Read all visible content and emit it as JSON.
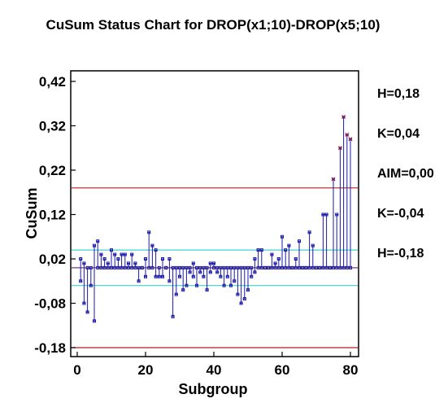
{
  "chart_data": {
    "type": "scatter",
    "title": "CuSum Status Chart for DROP(x1;10)-DROP(x5;10)",
    "xlabel": "Subgroup",
    "ylabel": "CuSum",
    "xlim": [
      -1,
      81.5
    ],
    "ylim": [
      -0.19,
      0.43
    ],
    "x_ticks": [
      0,
      20,
      40,
      60,
      80
    ],
    "x_tick_labels": [
      "0",
      "20",
      "40",
      "60",
      "80"
    ],
    "y_ticks": [
      0.42,
      0.32,
      0.22,
      0.12,
      0.02,
      -0.08,
      -0.18
    ],
    "y_tick_labels": [
      "0,42",
      "0,32",
      "0,22",
      "0,12",
      "0,02",
      "-0,08",
      "-0,18"
    ],
    "grid": false,
    "colors": {
      "points": "#1a1aa8",
      "signal_points": "#8b1a4a",
      "stems": "#1a1aa8",
      "decision_lines": "#b22222",
      "k_lines": "#40d0d0",
      "aim_line": "#7a3a7a"
    },
    "reference_lines": [
      {
        "label": "H=0,18",
        "value": 0.18,
        "kind": "decision"
      },
      {
        "label": "K=0,04",
        "value": 0.04,
        "kind": "slack"
      },
      {
        "label": "AIM=0,00",
        "value": 0.0,
        "kind": "aim"
      },
      {
        "label": "K=-0,04",
        "value": -0.04,
        "kind": "slack"
      },
      {
        "label": "H=-0,18",
        "value": -0.18,
        "kind": "decision"
      }
    ],
    "upper_cusum": {
      "x": [
        1,
        2,
        3,
        4,
        5,
        6,
        7,
        8,
        9,
        10,
        11,
        12,
        13,
        14,
        15,
        16,
        17,
        18,
        19,
        20,
        21,
        22,
        23,
        24,
        25,
        26,
        27,
        28,
        29,
        30,
        31,
        32,
        33,
        34,
        35,
        36,
        37,
        38,
        39,
        40,
        41,
        42,
        43,
        44,
        45,
        46,
        47,
        48,
        49,
        50,
        51,
        52,
        53,
        54,
        55,
        56,
        57,
        58,
        59,
        60,
        61,
        62,
        63,
        64,
        65,
        66,
        67,
        68,
        69,
        70,
        71,
        72,
        73,
        74,
        75,
        76,
        77,
        78,
        79,
        80
      ],
      "y": [
        0.02,
        0.01,
        0.0,
        0.0,
        0.05,
        0.06,
        0.03,
        0.02,
        0.01,
        0.04,
        0.03,
        0.02,
        0.03,
        0.03,
        0.01,
        0.03,
        0.01,
        0.0,
        0.0,
        0.02,
        0.08,
        0.05,
        0.04,
        0.0,
        0.02,
        0.0,
        0.02,
        0.0,
        0.0,
        0.0,
        0.0,
        0.0,
        0.0,
        0.01,
        0.0,
        0.0,
        0.0,
        0.0,
        0.01,
        0.01,
        0.0,
        0.0,
        0.0,
        0.0,
        0.0,
        0.0,
        0.0,
        0.0,
        0.0,
        0.0,
        0.0,
        0.02,
        0.04,
        0.04,
        0.0,
        0.0,
        0.03,
        0.01,
        0.02,
        0.07,
        0.04,
        0.05,
        0.0,
        0.02,
        0.06,
        0.0,
        0.0,
        0.08,
        0.05,
        0.0,
        0.0,
        0.12,
        0.12,
        0.0,
        0.2,
        0.12,
        0.27,
        0.34,
        0.3,
        0.29
      ],
      "signal_from_x": 74
    },
    "lower_cusum": {
      "x": [
        1,
        2,
        3,
        4,
        5,
        6,
        7,
        8,
        9,
        10,
        11,
        12,
        13,
        14,
        15,
        16,
        17,
        18,
        19,
        20,
        21,
        22,
        23,
        24,
        25,
        26,
        27,
        28,
        29,
        30,
        31,
        32,
        33,
        34,
        35,
        36,
        37,
        38,
        39,
        40,
        41,
        42,
        43,
        44,
        45,
        46,
        47,
        48,
        49,
        50,
        51,
        52,
        53,
        54,
        55,
        56,
        57,
        58,
        59,
        60,
        61,
        62,
        63,
        64,
        65,
        66,
        67,
        68,
        69,
        70,
        71,
        72,
        73,
        74,
        75,
        76,
        77,
        78,
        79,
        80
      ],
      "y": [
        -0.03,
        -0.08,
        -0.1,
        -0.04,
        -0.12,
        0.0,
        0.0,
        0.0,
        0.0,
        0.0,
        0.0,
        0.0,
        0.0,
        0.0,
        0.0,
        0.0,
        0.0,
        -0.03,
        0.0,
        -0.02,
        0.0,
        0.0,
        -0.02,
        -0.02,
        -0.02,
        0.0,
        -0.03,
        -0.11,
        -0.06,
        -0.02,
        -0.05,
        -0.04,
        -0.01,
        -0.02,
        -0.04,
        -0.01,
        -0.02,
        -0.05,
        -0.01,
        0.0,
        -0.01,
        -0.02,
        -0.04,
        -0.02,
        -0.04,
        -0.03,
        -0.06,
        -0.08,
        -0.07,
        -0.05,
        -0.02,
        -0.01,
        0.0,
        0.0,
        0.0,
        0.0,
        0.0,
        0.0,
        0.0,
        0.0,
        0.0,
        0.0,
        0.0,
        0.0,
        0.0,
        0.0,
        0.0,
        0.0,
        0.0,
        0.0,
        0.0,
        0.0,
        0.0,
        0.0,
        0.0,
        0.0,
        0.0,
        0.0,
        0.0,
        0.0
      ]
    }
  }
}
